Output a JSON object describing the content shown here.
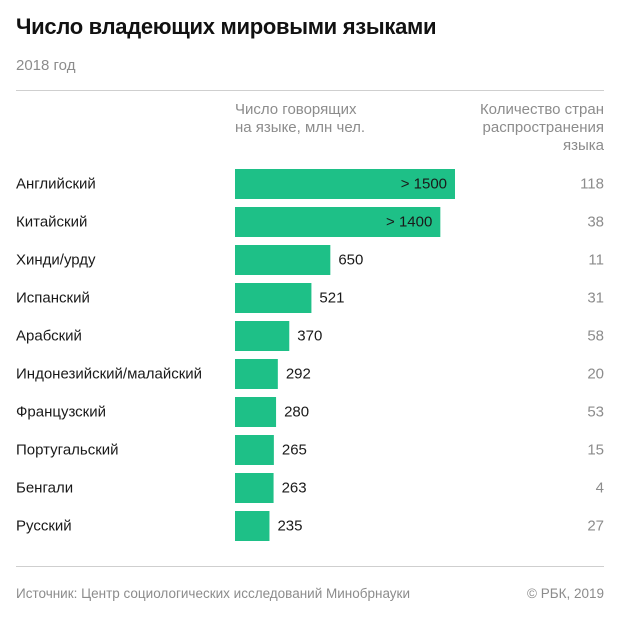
{
  "header": {
    "title": "Число владеющих мировыми языками",
    "subtitle": "2018 год"
  },
  "columns": {
    "speakers_line1": "Число говорящих",
    "speakers_line2": "на языке, млн чел.",
    "countries_line1": "Количество стран",
    "countries_line2": "распространения",
    "countries_line3": "языка"
  },
  "footer": {
    "source": "Источник: Центр социологических исследований Минобрнауки",
    "copyright": "© РБК, 2019"
  },
  "colors": {
    "bar": "#1ec087",
    "text": "#1a1a1a",
    "muted": "#8c8c8c"
  },
  "chart_data": {
    "type": "bar",
    "orientation": "horizontal",
    "title": "Число владеющих мировыми языками",
    "subtitle": "2018 год",
    "categories": [
      "Английский",
      "Китайский",
      "Хинди/урду",
      "Испанский",
      "Арабский",
      "Индонезийский/малайский",
      "Французский",
      "Португальский",
      "Бенгали",
      "Русский"
    ],
    "series": [
      {
        "name": "Число говорящих на языке, млн чел.",
        "values": [
          1500,
          1400,
          650,
          521,
          370,
          292,
          280,
          265,
          263,
          235
        ],
        "labels": [
          "> 1500",
          "> 1400",
          "650",
          "521",
          "370",
          "292",
          "280",
          "265",
          "263",
          "235"
        ]
      },
      {
        "name": "Количество стран распространения языка",
        "values": [
          118,
          38,
          11,
          31,
          58,
          20,
          53,
          15,
          4,
          27
        ]
      }
    ],
    "grid": false
  }
}
